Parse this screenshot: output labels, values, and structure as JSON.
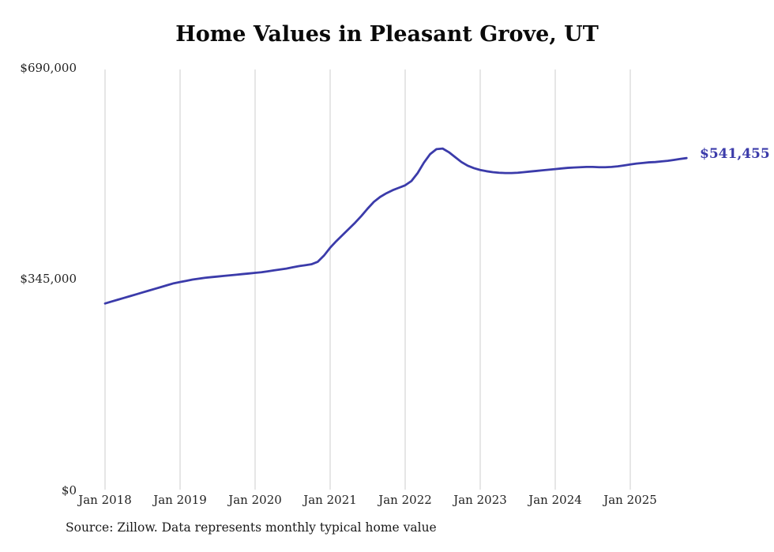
{
  "chart_data": {
    "type": "line",
    "title": "Home Values in Pleasant Grove, UT",
    "source": "Source: Zillow. Data represents monthly typical home value",
    "end_label": "$541,455",
    "end_value": 541455,
    "line_color": "#3b3baa",
    "grid_color": "#cccccc",
    "ylim": [
      0,
      690000
    ],
    "y_tick_labels": [
      "$690,000",
      "$345,000",
      "$0"
    ],
    "y_tick_values": [
      690000,
      345000,
      0
    ],
    "x_tick_labels": [
      "Jan 2018",
      "Jan 2019",
      "Jan 2020",
      "Jan 2021",
      "Jan 2022",
      "Jan 2023",
      "Jan 2024",
      "Jan 2025"
    ],
    "x_start_month": "Jan 2018",
    "points_per_year": 12,
    "grid": true,
    "legend": false,
    "values": [
      304000,
      307000,
      310000,
      313000,
      316000,
      319000,
      322000,
      325000,
      328000,
      331000,
      334000,
      337000,
      339000,
      341000,
      343000,
      344500,
      346000,
      347000,
      348000,
      349000,
      350000,
      351000,
      352000,
      353000,
      354000,
      355000,
      356500,
      358000,
      359500,
      361000,
      363000,
      365000,
      366500,
      368000,
      372000,
      382000,
      395000,
      406000,
      416000,
      426000,
      436000,
      447000,
      459000,
      470000,
      478000,
      484000,
      489000,
      493000,
      497000,
      504000,
      517000,
      534000,
      548000,
      556000,
      557000,
      551000,
      543000,
      535000,
      529000,
      525000,
      522000,
      520000,
      518500,
      517500,
      517000,
      517000,
      517500,
      518500,
      519500,
      520500,
      521500,
      522500,
      523500,
      524500,
      525500,
      526000,
      526500,
      527000,
      527000,
      526500,
      526500,
      527000,
      528000,
      529500,
      531000,
      532500,
      533500,
      534500,
      535000,
      536000,
      537000,
      538500,
      540000,
      541455
    ]
  }
}
